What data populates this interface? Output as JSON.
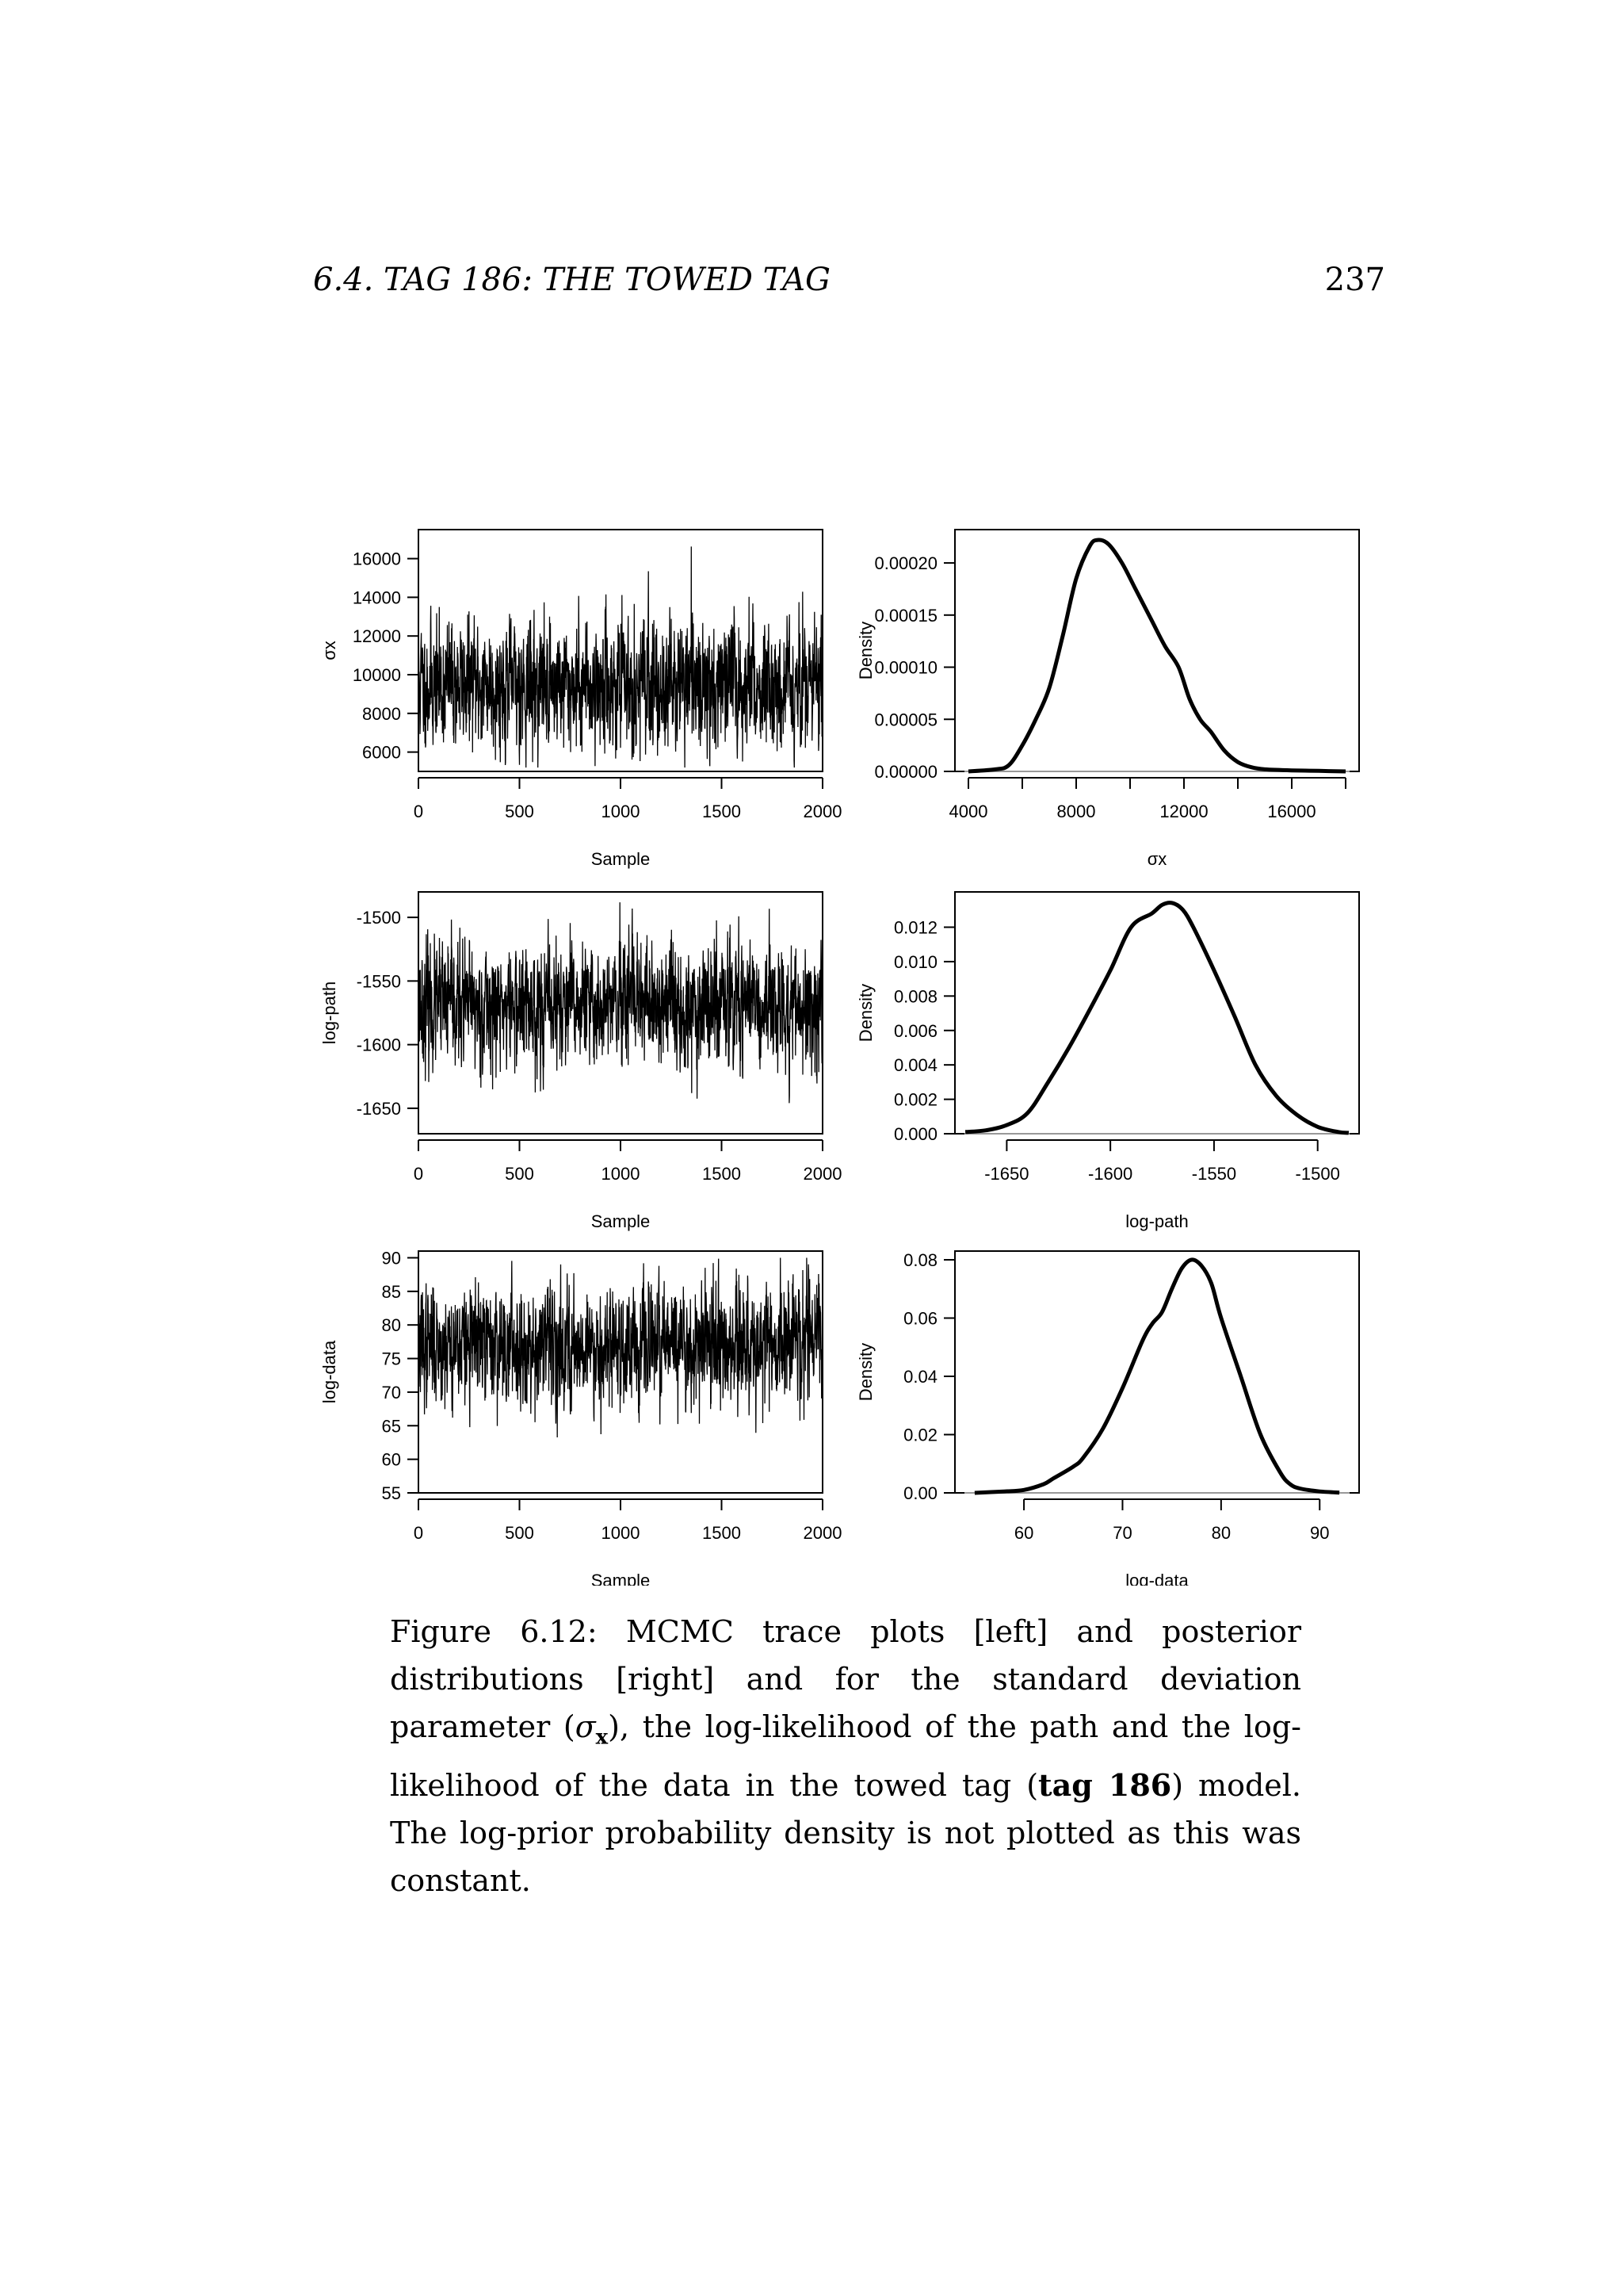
{
  "header": {
    "running_head": "6.4. TAG 186: THE TOWED TAG",
    "page_number": "237"
  },
  "caption": {
    "part1": "Figure 6.12: MCMC trace plots [left] and posterior distributions [right] and for the standard deviation parameter (",
    "symbol": "σ",
    "symbol_sub": "x",
    "part2": "), the log-likelihood of the path and the log-likelihood of the data in the towed tag (",
    "bold": "tag 186",
    "part3": ") model. The log-prior probability density is not plotted as this was constant."
  },
  "chart_data": [
    {
      "type": "line",
      "role": "trace",
      "xlabel": "Sample",
      "ylabel": "σx",
      "xlim": [
        0,
        2000
      ],
      "ylim": [
        5000,
        17500
      ],
      "xticks": [
        0,
        500,
        1000,
        1500,
        2000
      ],
      "yticks": [
        6000,
        8000,
        10000,
        12000,
        14000,
        16000
      ],
      "n_samples": 2000,
      "center": 9500,
      "spread": 1500,
      "min": 5200,
      "max": 17200,
      "seed": 11
    },
    {
      "type": "line",
      "role": "density",
      "xlabel": "σx",
      "ylabel": "Density",
      "xlim": [
        3500,
        18500
      ],
      "ylim": [
        0,
        0.000232
      ],
      "xticks": [
        4000,
        8000,
        12000,
        16000
      ],
      "xtick_marks": [
        4000,
        6000,
        8000,
        10000,
        12000,
        14000,
        16000,
        18000
      ],
      "yticks": [
        0,
        5e-05,
        0.0001,
        0.00015,
        0.0002
      ],
      "ytick_labels": [
        "0.00000",
        "0.00005",
        "0.00010",
        "0.00015",
        "0.00020"
      ],
      "x": [
        4000,
        5000,
        5500,
        6000,
        6500,
        7000,
        7500,
        8000,
        8500,
        8800,
        9200,
        9700,
        10200,
        10800,
        11300,
        11800,
        12200,
        12600,
        13000,
        13500,
        14000,
        14500,
        15000,
        16000,
        17000,
        18000
      ],
      "y": [
        0,
        2e-06,
        6e-06,
        2.5e-05,
        5e-05,
        8e-05,
        0.00013,
        0.000185,
        0.000216,
        0.000222,
        0.000218,
        0.0002,
        0.000175,
        0.000145,
        0.00012,
        0.0001,
        7e-05,
        5e-05,
        3.8e-05,
        2e-05,
        9e-06,
        4e-06,
        2e-06,
        1e-06,
        5e-07,
        0
      ]
    },
    {
      "type": "line",
      "role": "trace",
      "xlabel": "Sample",
      "ylabel": "log-path",
      "xlim": [
        0,
        2000
      ],
      "ylim": [
        -1670,
        -1480
      ],
      "xticks": [
        0,
        500,
        1000,
        1500,
        2000
      ],
      "yticks": [
        -1650,
        -1600,
        -1550,
        -1500
      ],
      "n_samples": 2000,
      "center": -1570,
      "spread": 22,
      "min": -1660,
      "max": -1483,
      "seed": 23
    },
    {
      "type": "line",
      "role": "density",
      "xlabel": "log-path",
      "ylabel": "Density",
      "xlim": [
        -1675,
        -1480
      ],
      "ylim": [
        0,
        0.01405
      ],
      "xticks": [
        -1650,
        -1600,
        -1550,
        -1500
      ],
      "xtick_marks": [
        -1650,
        -1600,
        -1550,
        -1500
      ],
      "yticks": [
        0,
        0.002,
        0.004,
        0.006,
        0.008,
        0.01,
        0.012
      ],
      "ytick_labels": [
        "0.000",
        "0.002",
        "0.004",
        "0.006",
        "0.008",
        "0.010",
        "0.012"
      ],
      "x": [
        -1670,
        -1660,
        -1650,
        -1640,
        -1630,
        -1620,
        -1610,
        -1600,
        -1590,
        -1580,
        -1575,
        -1570,
        -1565,
        -1560,
        -1550,
        -1540,
        -1530,
        -1520,
        -1510,
        -1500,
        -1490,
        -1485
      ],
      "y": [
        0.0001,
        0.0002,
        0.0005,
        0.0012,
        0.003,
        0.005,
        0.0072,
        0.0095,
        0.012,
        0.0128,
        0.0133,
        0.0134,
        0.013,
        0.012,
        0.0095,
        0.0068,
        0.004,
        0.0022,
        0.0011,
        0.0004,
        0.0001,
        5e-05
      ]
    },
    {
      "type": "line",
      "role": "trace",
      "xlabel": "Sample",
      "ylabel": "log-data",
      "xlim": [
        0,
        2000
      ],
      "ylim": [
        55,
        91
      ],
      "xticks": [
        0,
        500,
        1000,
        1500,
        2000
      ],
      "yticks": [
        55,
        60,
        65,
        70,
        75,
        80,
        85,
        90
      ],
      "n_samples": 2000,
      "center": 77,
      "spread": 4,
      "min": 56,
      "max": 90,
      "seed": 37
    },
    {
      "type": "line",
      "role": "density",
      "xlabel": "log-data",
      "ylabel": "Density",
      "xlim": [
        53,
        94
      ],
      "ylim": [
        0,
        0.083
      ],
      "xticks": [
        60,
        70,
        80,
        90
      ],
      "xtick_marks": [
        60,
        70,
        80,
        90
      ],
      "yticks": [
        0,
        0.02,
        0.04,
        0.06,
        0.08
      ],
      "ytick_labels": [
        "0.00",
        "0.02",
        "0.04",
        "0.06",
        "0.08"
      ],
      "x": [
        55,
        58,
        60,
        62,
        63,
        65,
        66,
        68,
        70,
        72,
        73,
        74,
        75,
        76,
        77,
        78,
        79,
        80,
        82,
        84,
        86,
        87,
        88,
        90,
        92
      ],
      "y": [
        0,
        0.0005,
        0.001,
        0.003,
        0.005,
        0.009,
        0.012,
        0.022,
        0.036,
        0.052,
        0.058,
        0.062,
        0.07,
        0.077,
        0.08,
        0.078,
        0.072,
        0.06,
        0.04,
        0.02,
        0.007,
        0.003,
        0.0015,
        0.0005,
        0.0001
      ]
    }
  ]
}
